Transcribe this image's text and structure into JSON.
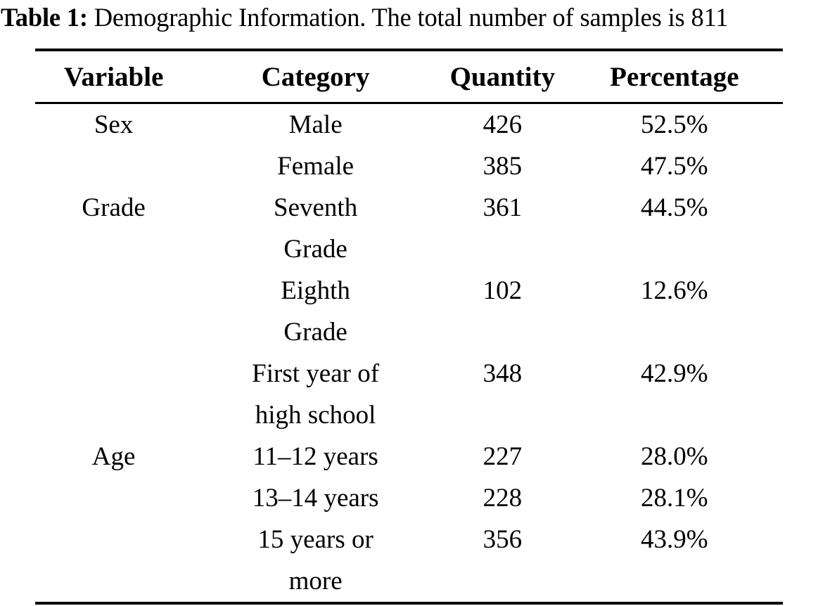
{
  "caption": {
    "label": "Table 1:",
    "text": " Demographic Information. The total number of samples is 811"
  },
  "table": {
    "headers": [
      "Variable",
      "Category",
      "Quantity",
      "Percentage"
    ],
    "rows": [
      {
        "variable": "Sex",
        "category": "Male",
        "quantity": "426",
        "percentage": "52.5%"
      },
      {
        "variable": "",
        "category": "Female",
        "quantity": "385",
        "percentage": "47.5%"
      },
      {
        "variable": "Grade",
        "category": "Seventh\nGrade",
        "quantity": "361",
        "percentage": "44.5%"
      },
      {
        "variable": "",
        "category": "Eighth\nGrade",
        "quantity": "102",
        "percentage": "12.6%"
      },
      {
        "variable": "",
        "category": "First year of\nhigh school",
        "quantity": "348",
        "percentage": "42.9%"
      },
      {
        "variable": "Age",
        "category": "11–12 years",
        "quantity": "227",
        "percentage": "28.0%"
      },
      {
        "variable": "",
        "category": "13–14 years",
        "quantity": "228",
        "percentage": "28.1%"
      },
      {
        "variable": "",
        "category": "15 years or\nmore",
        "quantity": "356",
        "percentage": "43.9%"
      }
    ],
    "total_samples": "811"
  }
}
